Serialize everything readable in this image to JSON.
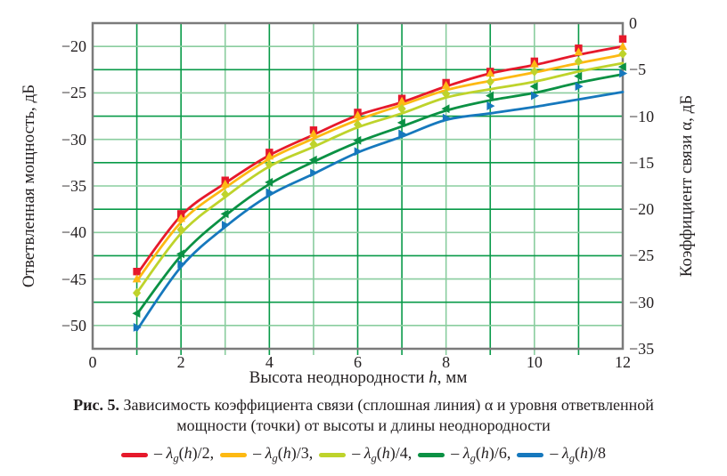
{
  "figure": {
    "axes": {
      "x_title": {
        "text": "Высота неоднородности ",
        "var": "h",
        "unit": ", мм"
      },
      "y_left_title": "Ответвленная мощность, дБ",
      "y_right_title": "Коэффициент связи α, дБ"
    },
    "caption": {
      "bold": "Рис. 5.",
      "line1_rest": " Зависимость коэффициента связи (сплошная линия) α и уровня ответвленной",
      "line2": "мощности (точки) от высоты и длины неоднородности"
    }
  },
  "chart_data": {
    "type": "line",
    "title": "",
    "xlabel": "Высота неоднородности h, мм",
    "ylabel_left": "Ответвленная мощность, дБ",
    "ylabel_right": "Коэффициент связи α, дБ",
    "x_range": [
      0,
      12
    ],
    "y_left_range": [
      -52.5,
      -17.5
    ],
    "y_right_range": [
      -35,
      0
    ],
    "grid": {
      "on": true,
      "light_color": "#8acd9f",
      "dark_color": "#089a48",
      "frame_color": "#7b7b7b",
      "light_vertical_x": [
        3,
        5,
        8,
        10
      ],
      "vertical_step": 1,
      "horizontal_step_db": 2.5
    },
    "x_tick_labels": [
      "0",
      "2",
      "4",
      "6",
      "8",
      "10",
      "12"
    ],
    "x_tick_values": [
      0,
      2,
      4,
      6,
      8,
      10,
      12
    ],
    "y_left_tick_labels": [
      "−20",
      "−25",
      "−30",
      "−35",
      "−40",
      "−45",
      "−50"
    ],
    "y_left_tick_values": [
      -20,
      -25,
      -30,
      -35,
      -40,
      -45,
      -50
    ],
    "y_right_tick_labels": [
      "0",
      "−5",
      "−10",
      "−15",
      "−20",
      "−25",
      "−30",
      "−35"
    ],
    "y_right_tick_values": [
      0,
      -5,
      -10,
      -15,
      -20,
      -25,
      -30,
      -35
    ],
    "x": [
      1,
      2,
      3,
      4,
      5,
      6,
      7,
      8,
      9,
      10,
      11,
      12
    ],
    "series": [
      {
        "name": "lambda_g(h)/2",
        "color": "#e6192b",
        "marker": "square",
        "legend": {
          "pre": "– ",
          "lambda": "λ",
          "sub": "g",
          "open": "(",
          "var": "h",
          "post": ")/2,"
        },
        "line_alpha_db": [
          -27.0,
          -20.7,
          -17.2,
          -14.2,
          -12.0,
          -9.9,
          -8.5,
          -6.8,
          -5.4,
          -4.5,
          -3.4,
          -2.5
        ],
        "marker_power_db": [
          -44.2,
          -38.0,
          -34.4,
          -31.4,
          -29.0,
          -27.1,
          -25.6,
          -23.9,
          -22.7,
          -21.6,
          -20.2,
          -19.2
        ]
      },
      {
        "name": "lambda_g(h)/3",
        "color": "#fdb913",
        "marker": "triangle-up",
        "legend": {
          "pre": "– ",
          "lambda": "λ",
          "sub": "g",
          "open": "(",
          "var": "h",
          "post": ")/3,"
        },
        "line_alpha_db": [
          -27.7,
          -21.4,
          -17.7,
          -14.6,
          -12.4,
          -10.4,
          -8.8,
          -7.2,
          -6.2,
          -5.3,
          -4.3,
          -3.4
        ],
        "marker_power_db": [
          -45.0,
          -38.5,
          -34.8,
          -31.8,
          -29.4,
          -27.4,
          -25.9,
          -24.2,
          -22.9,
          -21.9,
          -20.6,
          -20.0
        ]
      },
      {
        "name": "lambda_g(h)/4",
        "color": "#bed32b",
        "marker": "diamond",
        "legend": {
          "pre": "– ",
          "lambda": "λ",
          "sub": "g",
          "open": "(",
          "var": "h",
          "post": ")/4,"
        },
        "line_alpha_db": [
          -29.0,
          -22.6,
          -18.7,
          -15.4,
          -13.3,
          -11.2,
          -9.7,
          -8.0,
          -7.1,
          -6.3,
          -5.2,
          -4.3
        ],
        "marker_power_db": [
          -46.5,
          -39.7,
          -35.9,
          -32.7,
          -30.5,
          -28.4,
          -26.7,
          -25.1,
          -23.8,
          -22.7,
          -21.6,
          -20.8
        ]
      },
      {
        "name": "lambda_g(h)/6",
        "color": "#0b9144",
        "marker": "triangle-left",
        "legend": {
          "pre": "– ",
          "lambda": "λ",
          "sub": "g",
          "open": "(",
          "var": "h",
          "post": ")/6,"
        },
        "line_alpha_db": [
          -31.3,
          -25.0,
          -20.7,
          -17.3,
          -14.9,
          -12.8,
          -11.1,
          -9.4,
          -8.3,
          -7.5,
          -6.4,
          -5.5
        ],
        "marker_power_db": [
          -48.7,
          -42.3,
          -38.0,
          -34.6,
          -32.2,
          -30.1,
          -28.2,
          -26.7,
          -25.3,
          -24.3,
          -23.2,
          -22.2
        ]
      },
      {
        "name": "lambda_g(h)/8",
        "color": "#1678bd",
        "marker": "triangle-right",
        "legend": {
          "pre": "– ",
          "lambda": "λ",
          "sub": "g",
          "open": "(",
          "var": "h",
          "post": ")/8"
        },
        "line_alpha_db": [
          -33.0,
          -26.2,
          -21.9,
          -18.5,
          -16.2,
          -13.9,
          -12.2,
          -10.4,
          -9.7,
          -9.0,
          -8.2,
          -7.4
        ],
        "marker_power_db": [
          -50.2,
          -43.4,
          -39.2,
          -35.7,
          -33.6,
          -31.3,
          -29.4,
          -27.7,
          -26.4,
          -25.3,
          -24.3,
          -22.9
        ]
      }
    ],
    "legend_position": "bottom"
  }
}
